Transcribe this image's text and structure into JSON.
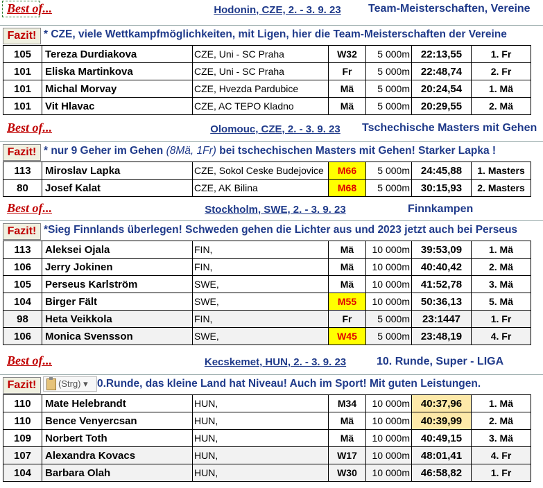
{
  "sections": [
    {
      "best_of": "Best of...",
      "place": "Hodonin, CZE, 2. - 3. 9. 23",
      "event": "Team-Meisterschaften, Vereine",
      "fazit_label": "Fazit!",
      "fazit_text": "* CZE, viele Wettkampfmöglichkeiten, mit Ligen, hier die Team-Meisterschaften der Vereine",
      "rows": [
        {
          "nr": "105",
          "name": "Tereza Durdiakova",
          "club": "CZE, Uni - SC Praha",
          "cat": "W32",
          "dist": "5 000m",
          "time": "22:13,55",
          "place": "1. Fr"
        },
        {
          "nr": "101",
          "name": "Eliska Martinkova",
          "club": "CZE, Uni - SC Praha",
          "cat": "Fr",
          "dist": "5 000m",
          "time": "22:48,74",
          "place": "2. Fr"
        },
        {
          "nr": "101",
          "name": "Michal Morvay",
          "club": "CZE, Hvezda Pardubice",
          "cat": "Mä",
          "dist": "5 000m",
          "time": "20:24,54",
          "place": "1. Mä"
        },
        {
          "nr": "101",
          "name": "Vit Hlavac",
          "club": "CZE, AC TEPO Kladno",
          "cat": "Mä",
          "dist": "5 000m",
          "time": "20:29,55",
          "place": "2. Mä"
        }
      ]
    },
    {
      "best_of": "Best of...",
      "place": "Olomouc, CZE, 2. - 3. 9. 23",
      "event": "Tschechische Masters mit Gehen",
      "fazit_label": "Fazit!",
      "fazit_text_a": "* nur 9 Geher im Gehen ",
      "fazit_text_b": "(8Mä, 1Fr)",
      "fazit_text_c": " bei tschechischen Masters mit Gehen! Starker Lapka !",
      "rows": [
        {
          "nr": "113",
          "name": "Miroslav Lapka",
          "club": "CZE, Sokol Ceske Budejovice",
          "cat": "M66",
          "dist": "5 000m",
          "time": "24:45,88",
          "place": "1. Masters"
        },
        {
          "nr": "80",
          "name": "Josef Kalat",
          "club": "CZE, AK Bilina",
          "cat": "M68",
          "dist": "5 000m",
          "time": "30:15,93",
          "place": "2. Masters"
        }
      ]
    },
    {
      "best_of": "Best of...",
      "place": "Stockholm, SWE, 2. - 3. 9. 23",
      "event": "Finnkampen",
      "fazit_label": "Fazit!",
      "fazit_text": "*Sieg Finnlands überlegen! Schweden gehen die Lichter aus und 2023 jetzt auch bei Perseus",
      "rows": [
        {
          "nr": "113",
          "name": "Aleksei Ojala",
          "club": "FIN,",
          "cat": "Mä",
          "dist": "10 000m",
          "time": "39:53,09",
          "place": "1. Mä"
        },
        {
          "nr": "106",
          "name": "Jerry Jokinen",
          "club": "FIN,",
          "cat": "Mä",
          "dist": "10 000m",
          "time": "40:40,42",
          "place": "2. Mä"
        },
        {
          "nr": "105",
          "name": "Perseus Karlström",
          "club": "SWE,",
          "cat": "Mä",
          "dist": "10 000m",
          "time": "41:52,78",
          "place": "3. Mä"
        },
        {
          "nr": "104",
          "name": "Birger Fält",
          "club": "SWE,",
          "cat": "M55",
          "dist": "10 000m",
          "time": "50:36,13",
          "place": "5. Mä"
        },
        {
          "nr": "98",
          "name": "Heta Veikkola",
          "club": "FIN,",
          "cat": "Fr",
          "dist": "5 000m",
          "time": "23:1447",
          "place": "1. Fr"
        },
        {
          "nr": "106",
          "name": "Monica Svensson",
          "club": "SWE,",
          "cat": "W45",
          "dist": "5 000m",
          "time": "23:48,19",
          "place": "4. Fr"
        }
      ]
    },
    {
      "best_of": "Best of...",
      "place": "Kecskemet, HUN, 2. - 3. 9. 23",
      "event": "10. Runde, Super - LIGA",
      "fazit_label": "Fazit!",
      "paste_label": "(Strg) ▾",
      "fazit_text": "0.Runde, das kleine Land hat Niveau! Auch im Sport! Mit guten Leistungen.",
      "rows": [
        {
          "nr": "110",
          "name": "Mate Helebrandt",
          "club": "HUN,",
          "cat": "M34",
          "dist": "10 000m",
          "time": "40:37,96",
          "place": "1. Mä"
        },
        {
          "nr": "110",
          "name": "Bence Venyercsan",
          "club": "HUN,",
          "cat": "Mä",
          "dist": "10 000m",
          "time": "40:39,99",
          "place": "2. Mä"
        },
        {
          "nr": "109",
          "name": "Norbert Toth",
          "club": "HUN,",
          "cat": "Mä",
          "dist": "10 000m",
          "time": "40:49,15",
          "place": "3. Mä"
        },
        {
          "nr": "107",
          "name": "Alexandra Kovacs",
          "club": "HUN,",
          "cat": "W17",
          "dist": "10 000m",
          "time": "48:01,41",
          "place": "4. Fr"
        },
        {
          "nr": "104",
          "name": "Barbara Olah",
          "club": "HUN,",
          "cat": "W30",
          "dist": "10 000m",
          "time": "46:58,82",
          "place": "1. Fr"
        }
      ]
    }
  ],
  "colors": {
    "accent": "#1f3a8a",
    "best_of": "#c00000",
    "category_highlight": "#ffff00",
    "time_highlight": "#fde9a9"
  }
}
